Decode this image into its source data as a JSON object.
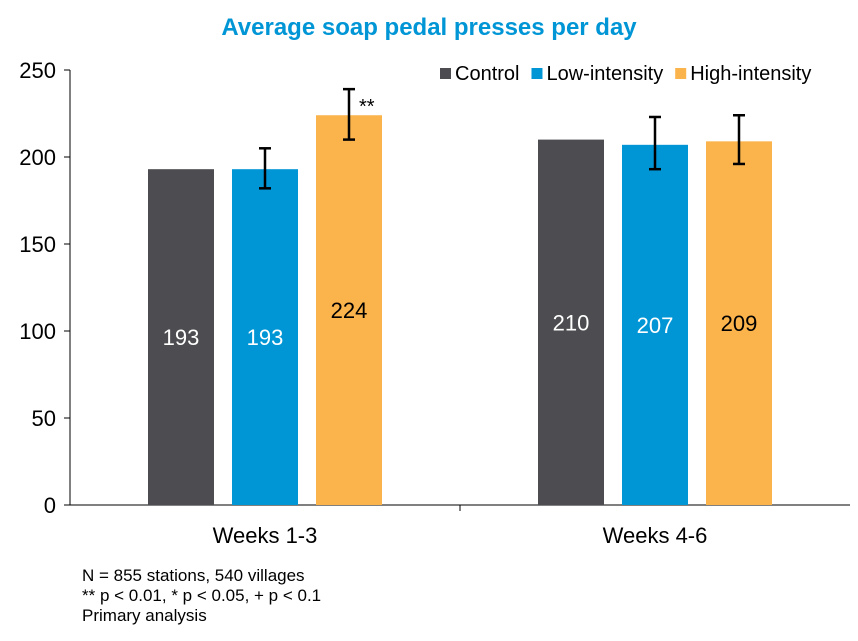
{
  "chart_data": {
    "type": "bar",
    "title": "Average soap pedal presses per day",
    "categories": [
      "Weeks 1-3",
      "Weeks 4-6"
    ],
    "series": [
      {
        "name": "Control",
        "color": "#4D4D51",
        "label_color": "#ffffff",
        "values": [
          193,
          210
        ],
        "labels": [
          "193",
          "210"
        ],
        "error": [
          null,
          null
        ],
        "annotations": [
          "",
          ""
        ]
      },
      {
        "name": "Low-intensity",
        "color": "#0096D6",
        "label_color": "#ffffff",
        "values": [
          193,
          207
        ],
        "labels": [
          "193",
          "207"
        ],
        "error": [
          [
            182,
            205
          ],
          [
            193,
            223
          ]
        ],
        "annotations": [
          "",
          ""
        ]
      },
      {
        "name": "High-intensity",
        "color": "#FBB34C",
        "label_color": "#000000",
        "values": [
          224,
          209
        ],
        "labels": [
          "224",
          "209"
        ],
        "error": [
          [
            210,
            239
          ],
          [
            196,
            224
          ]
        ],
        "annotations": [
          "**",
          ""
        ]
      }
    ],
    "ylim": [
      0,
      250
    ],
    "yticks": [
      0,
      50,
      100,
      150,
      200,
      250
    ],
    "xlabel": "",
    "ylabel": "",
    "grid": false,
    "legend": "top-right"
  },
  "notes": [
    "N = 855 stations, 540 villages",
    "** p < 0.01, * p < 0.05, + p < 0.1",
    "Primary analysis"
  ]
}
